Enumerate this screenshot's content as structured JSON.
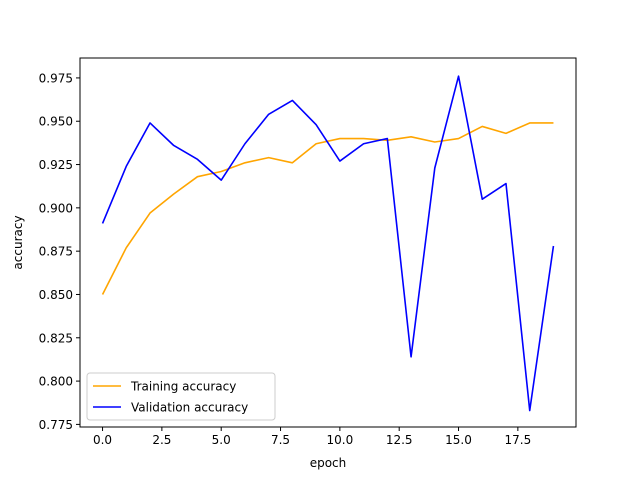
{
  "chart_data": {
    "type": "line",
    "title": "",
    "xlabel": "epoch",
    "ylabel": "accuracy",
    "xlim": [
      -0.95,
      19.95
    ],
    "ylim": [
      0.7735,
      0.9865
    ],
    "x_ticks": [
      0,
      2.5,
      5,
      7.5,
      10,
      12.5,
      15,
      17.5
    ],
    "x_tick_labels": [
      "0.0",
      "2.5",
      "5.0",
      "7.5",
      "10.0",
      "12.5",
      "15.0",
      "17.5"
    ],
    "y_ticks": [
      0.775,
      0.8,
      0.825,
      0.85,
      0.875,
      0.9,
      0.925,
      0.95,
      0.975
    ],
    "y_tick_labels": [
      "0.775",
      "0.800",
      "0.825",
      "0.850",
      "0.875",
      "0.900",
      "0.925",
      "0.950",
      "0.975"
    ],
    "grid": false,
    "legend_position": "lower-left",
    "x": [
      0,
      1,
      2,
      3,
      4,
      5,
      6,
      7,
      8,
      9,
      10,
      11,
      12,
      13,
      14,
      15,
      16,
      17,
      18,
      19
    ],
    "series": [
      {
        "name": "Training accuracy",
        "color": "#ffa500",
        "values": [
          0.85,
          0.877,
          0.897,
          0.908,
          0.918,
          0.921,
          0.926,
          0.929,
          0.926,
          0.937,
          0.94,
          0.94,
          0.939,
          0.941,
          0.938,
          0.94,
          0.947,
          0.943,
          0.949,
          0.949
        ]
      },
      {
        "name": "Validation accuracy",
        "color": "#0000ff",
        "values": [
          0.891,
          0.924,
          0.949,
          0.936,
          0.928,
          0.916,
          0.937,
          0.954,
          0.962,
          0.948,
          0.927,
          0.937,
          0.94,
          0.814,
          0.923,
          0.976,
          0.905,
          0.914,
          0.783,
          0.878
        ]
      }
    ]
  }
}
